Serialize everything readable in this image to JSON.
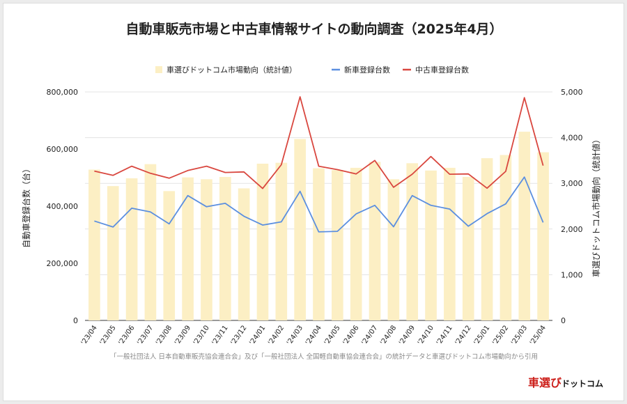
{
  "title": "自動車販売市場と中古車情報サイトの動向調査（2025年4月）",
  "source": "「一般社団法人 日本自動車販売協会連合会」及び「一般社団法人 全国軽自動車協会連合会」の統計データと車選びドットコム市場動向から引用",
  "logo": {
    "part1": "車選び",
    "part2": "ドットコム"
  },
  "colors": {
    "bar": "#fcefc4",
    "new_line": "#5b8fe0",
    "used_line": "#d9473f"
  },
  "chart_data": {
    "type": "bar+line",
    "categories": [
      "'23/04",
      "'23/05",
      "'23/06",
      "'23/07",
      "'23/08",
      "'23/09",
      "'23/10",
      "'23/11",
      "'23/12",
      "'24/01",
      "'24/02",
      "'24/03",
      "'24/04",
      "'24/05",
      "'24/06",
      "'24/07",
      "'24/08",
      "'24/09",
      "'24/10",
      "'24/11",
      "'24/12",
      "'25/01",
      "'25/02",
      "'25/03",
      "'25/04"
    ],
    "ylabel_left": "自動車登録台数（台）",
    "ylabel_right": "車選びドットコム市場動向（統計値）",
    "ylim_left": [
      0,
      800000
    ],
    "ylim_right": [
      0,
      5000
    ],
    "yticks_left": [
      "0",
      "200,000",
      "400,000",
      "600,000",
      "800,000"
    ],
    "yticks_right": [
      "0",
      "1,000",
      "2,000",
      "3,000",
      "4,000",
      "5,000"
    ],
    "grid": true,
    "legend_position": "top",
    "series": [
      {
        "name": "車選びドットコム市場動向（統計値）",
        "kind": "bar",
        "axis": "right",
        "values": [
          3300,
          2940,
          3110,
          3420,
          2830,
          3130,
          3090,
          3140,
          2890,
          3430,
          3450,
          3970,
          3330,
          3290,
          3340,
          3470,
          3090,
          3440,
          3280,
          3340,
          3140,
          3550,
          3620,
          4130,
          3680
        ]
      },
      {
        "name": "新車登録台数",
        "kind": "line",
        "axis": "left",
        "values": [
          348000,
          327000,
          393000,
          380000,
          338000,
          437000,
          398000,
          410000,
          365000,
          334000,
          345000,
          452000,
          310000,
          312000,
          373000,
          403000,
          328000,
          437000,
          403000,
          390000,
          330000,
          374000,
          408000,
          502000,
          343000
        ]
      },
      {
        "name": "中古車登録台数",
        "kind": "line",
        "axis": "left",
        "values": [
          523000,
          508000,
          540000,
          515000,
          498000,
          525000,
          540000,
          518000,
          520000,
          462000,
          545000,
          783000,
          540000,
          528000,
          513000,
          560000,
          466000,
          512000,
          574000,
          512000,
          513000,
          463000,
          522000,
          780000,
          542000
        ]
      }
    ]
  }
}
